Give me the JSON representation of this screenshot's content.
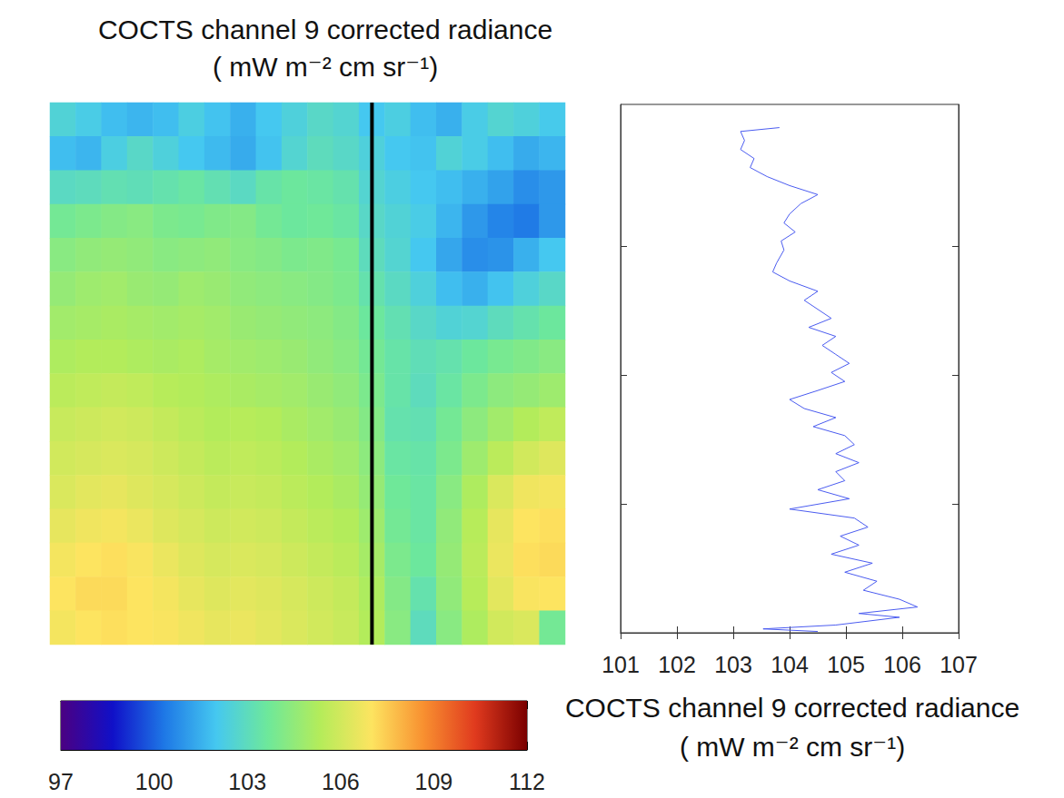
{
  "chart_data": [
    {
      "type": "heatmap",
      "title": "COCTS channel 9 corrected radiance",
      "subtitle": "( mW m⁻² cm sr⁻¹)",
      "tick_labels": false,
      "profile_column": 12,
      "colorbar": {
        "range": [
          97,
          112
        ],
        "ticks": [
          97,
          100,
          103,
          106,
          109,
          112
        ]
      },
      "cells": [
        [
          102.5,
          102.2,
          101.8,
          101.6,
          101.8,
          102.3,
          101.9,
          101.5,
          102.0,
          102.4,
          102.8,
          102.6,
          102.0,
          102.3,
          101.8,
          101.5,
          102.2,
          102.6,
          102.4,
          102.1
        ],
        [
          101.8,
          101.6,
          102.3,
          102.8,
          102.4,
          102.0,
          101.7,
          101.4,
          101.9,
          102.6,
          103.0,
          102.8,
          102.4,
          102.0,
          101.9,
          102.5,
          102.2,
          101.8,
          101.4,
          101.6
        ],
        [
          102.9,
          103.0,
          103.2,
          103.1,
          103.3,
          103.5,
          103.2,
          102.9,
          103.4,
          103.6,
          103.5,
          103.3,
          102.6,
          102.3,
          102.0,
          101.8,
          101.5,
          101.2,
          100.8,
          101.0
        ],
        [
          103.8,
          104.0,
          104.2,
          104.3,
          104.0,
          103.9,
          104.1,
          104.2,
          103.8,
          103.6,
          103.7,
          103.5,
          102.8,
          102.5,
          102.2,
          101.6,
          101.0,
          100.6,
          100.4,
          101.0
        ],
        [
          104.3,
          104.5,
          104.6,
          104.5,
          104.3,
          104.4,
          104.5,
          104.3,
          104.2,
          104.0,
          104.1,
          103.9,
          103.0,
          102.6,
          102.0,
          101.3,
          100.8,
          100.9,
          101.5,
          102.0
        ],
        [
          104.6,
          104.8,
          104.9,
          104.7,
          104.6,
          104.8,
          104.7,
          104.5,
          104.4,
          104.3,
          104.2,
          104.0,
          103.3,
          102.9,
          102.4,
          101.8,
          101.5,
          101.9,
          102.4,
          102.8
        ],
        [
          104.9,
          105.0,
          105.1,
          105.0,
          104.9,
          105.0,
          104.9,
          104.7,
          104.6,
          104.5,
          104.4,
          104.2,
          103.6,
          103.2,
          102.8,
          102.5,
          102.6,
          103.0,
          103.3,
          103.6
        ],
        [
          105.2,
          105.3,
          105.3,
          105.2,
          105.1,
          105.2,
          105.0,
          104.9,
          104.8,
          104.7,
          104.5,
          104.3,
          103.8,
          103.4,
          103.1,
          103.3,
          103.6,
          103.9,
          104.1,
          104.3
        ],
        [
          105.5,
          105.6,
          105.7,
          105.6,
          105.4,
          105.3,
          105.2,
          105.1,
          105.0,
          104.9,
          104.7,
          104.5,
          104.0,
          103.4,
          103.0,
          103.5,
          104.0,
          104.4,
          104.6,
          104.8
        ],
        [
          105.8,
          105.9,
          106.0,
          105.9,
          105.7,
          105.5,
          105.3,
          105.4,
          105.3,
          105.1,
          104.9,
          104.7,
          104.2,
          103.3,
          103.2,
          103.8,
          104.4,
          104.9,
          105.3,
          105.6
        ],
        [
          106.0,
          106.1,
          106.2,
          106.1,
          105.9,
          105.7,
          105.5,
          105.6,
          105.5,
          105.3,
          105.1,
          104.9,
          104.4,
          103.5,
          103.4,
          104.0,
          104.8,
          105.5,
          106.0,
          106.3
        ],
        [
          106.2,
          106.4,
          106.5,
          106.3,
          106.1,
          105.9,
          105.7,
          105.8,
          105.7,
          105.5,
          105.3,
          105.1,
          104.6,
          103.7,
          103.5,
          104.3,
          105.2,
          106.2,
          106.7,
          106.8
        ],
        [
          106.5,
          106.7,
          106.8,
          106.6,
          106.3,
          106.1,
          105.9,
          106.0,
          105.9,
          105.7,
          105.5,
          105.3,
          104.8,
          103.8,
          103.5,
          104.5,
          105.4,
          106.5,
          107.0,
          107.1
        ],
        [
          106.8,
          107.0,
          107.1,
          106.9,
          106.6,
          106.3,
          106.1,
          106.2,
          106.1,
          105.9,
          105.7,
          105.5,
          105.0,
          104.0,
          103.6,
          104.6,
          105.5,
          106.6,
          107.1,
          107.2
        ],
        [
          107.0,
          107.2,
          107.2,
          107.0,
          106.8,
          106.5,
          106.3,
          106.4,
          106.3,
          106.1,
          105.9,
          105.7,
          105.2,
          104.2,
          103.3,
          104.5,
          105.4,
          106.4,
          106.9,
          107.0
        ],
        [
          106.8,
          107.0,
          107.1,
          107.0,
          106.9,
          106.7,
          106.5,
          106.6,
          106.4,
          106.2,
          106.0,
          105.8,
          105.3,
          104.3,
          103.0,
          104.3,
          105.2,
          106.0,
          106.2,
          103.8
        ]
      ]
    },
    {
      "type": "line",
      "xlabel": [
        "COCTS channel 9 corrected radiance",
        "( mW m⁻² cm sr⁻¹)"
      ],
      "color": "#4b5cf0",
      "tick_labels": "x",
      "xlim": [
        101,
        107
      ],
      "xticks": [
        101,
        102,
        103,
        104,
        105,
        106,
        107
      ],
      "ylim": [
        0,
        410
      ],
      "yticks": [
        100,
        200,
        300
      ],
      "x": [
        103.82,
        103.13,
        103.2,
        103.13,
        103.37,
        103.3,
        103.6,
        104.0,
        104.5,
        104.2,
        104.0,
        103.9,
        104.1,
        103.85,
        103.9,
        103.77,
        103.7,
        104.0,
        104.5,
        104.26,
        104.5,
        104.74,
        104.34,
        104.82,
        104.58,
        104.82,
        105.06,
        104.74,
        104.98,
        104.5,
        104.0,
        104.26,
        104.82,
        104.42,
        104.98,
        105.15,
        104.82,
        105.23,
        104.82,
        104.98,
        104.5,
        105.06,
        104.0,
        105.15,
        105.39,
        104.9,
        105.23,
        104.74,
        105.47,
        104.98,
        105.55,
        105.31,
        105.95,
        106.27,
        105.23,
        105.95,
        104.82,
        103.53,
        104.5
      ],
      "y": [
        392,
        389,
        382,
        375,
        368,
        361,
        354,
        347,
        340,
        333,
        325,
        318,
        311,
        304,
        297,
        287,
        280,
        273,
        265,
        258,
        251,
        244,
        237,
        230,
        223,
        216,
        209,
        202,
        195,
        188,
        181,
        174,
        167,
        160,
        153,
        146,
        139,
        132,
        125,
        118,
        111,
        104,
        96,
        89,
        82,
        75,
        68,
        61,
        54,
        47,
        40,
        33,
        26,
        20,
        15,
        12,
        6,
        3,
        1
      ]
    }
  ]
}
